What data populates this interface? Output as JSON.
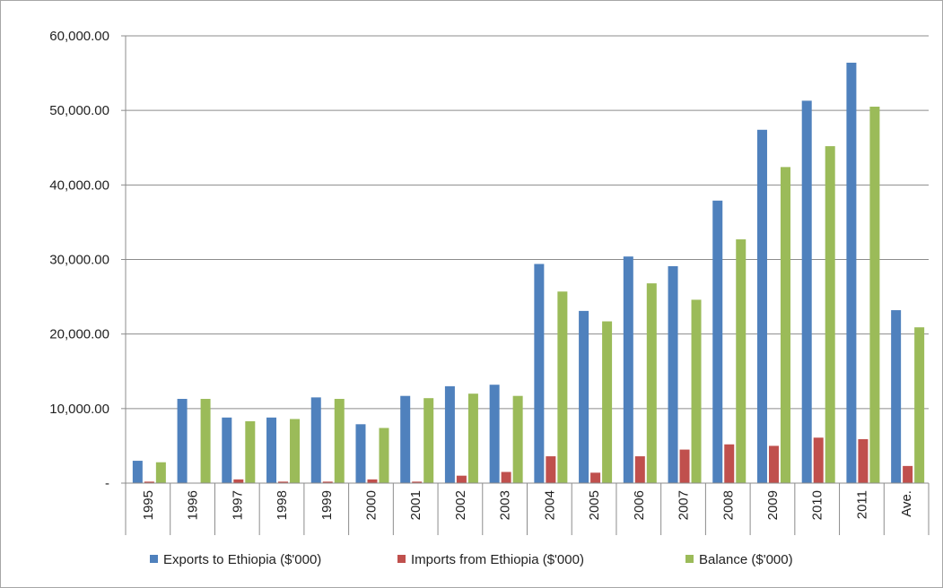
{
  "chart_data": {
    "type": "bar",
    "title": "",
    "xlabel": "",
    "ylabel": "",
    "categories": [
      "1995",
      "1996",
      "1997",
      "1998",
      "1999",
      "2000",
      "2001",
      "2002",
      "2003",
      "2004",
      "2005",
      "2006",
      "2007",
      "2008",
      "2009",
      "2010",
      "2011",
      "Ave."
    ],
    "ylim": [
      0,
      60000
    ],
    "ytick_values": [
      0,
      10000,
      20000,
      30000,
      40000,
      50000,
      60000
    ],
    "ytick_labels": [
      "-",
      "10,000.00",
      "20,000.00",
      "30,000.00",
      "40,000.00",
      "50,000.00",
      "60,000.00"
    ],
    "grid": true,
    "legend_position": "bottom",
    "series": [
      {
        "name": "Exports to Ethiopia ($'000)",
        "color": "#4F81BD",
        "values": [
          3000,
          11300,
          8800,
          8800,
          11500,
          7900,
          11700,
          13000,
          13200,
          29400,
          23100,
          30400,
          29100,
          37900,
          47400,
          51300,
          56400,
          23200
        ]
      },
      {
        "name": "Imports from Ethiopia ($'000)",
        "color": "#C0504D",
        "values": [
          200,
          0,
          500,
          200,
          200,
          500,
          200,
          1000,
          1500,
          3600,
          1400,
          3600,
          4500,
          5200,
          5000,
          6100,
          5900,
          2300
        ]
      },
      {
        "name": "Balance ($'000)",
        "color": "#9BBB59",
        "values": [
          2800,
          11300,
          8300,
          8600,
          11300,
          7400,
          11400,
          12000,
          11700,
          25700,
          21700,
          26800,
          24600,
          32700,
          42400,
          45200,
          50500,
          20900
        ]
      }
    ]
  }
}
